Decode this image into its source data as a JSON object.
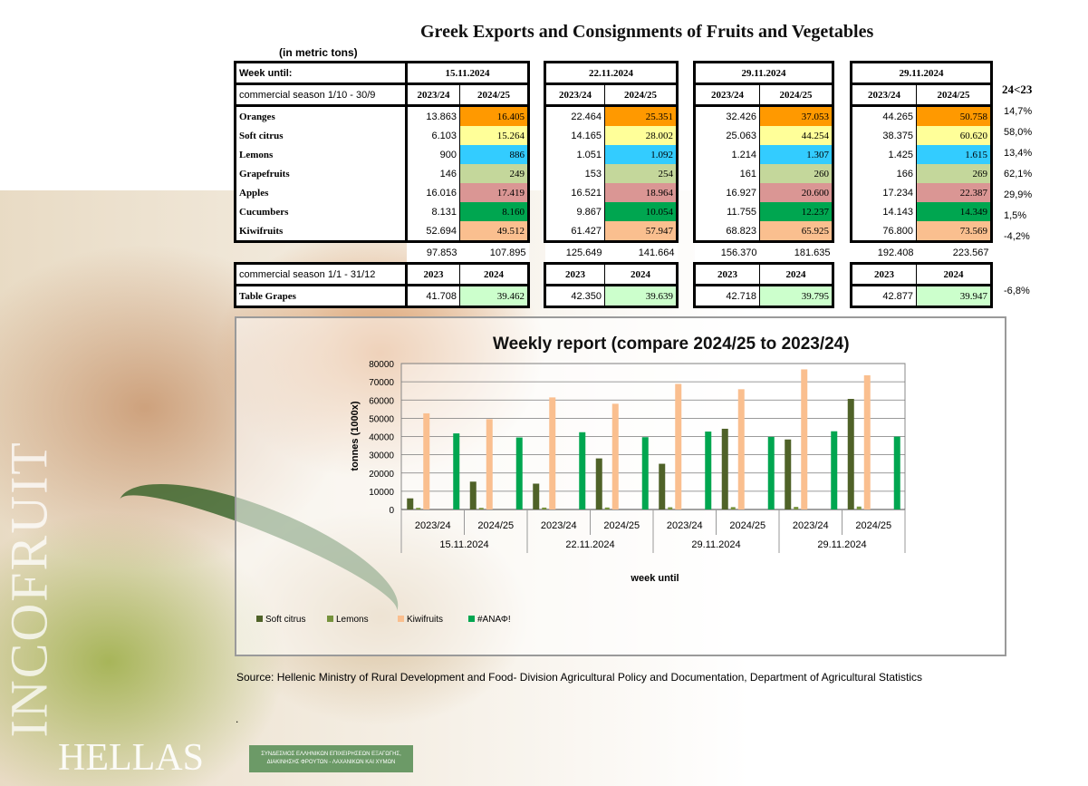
{
  "title": "Greek Exports and Consignments of Fruits and Vegetables",
  "units": "(in metric tons)",
  "header": {
    "label": "Week until:",
    "weeks": [
      "15.11.2024",
      "22.11.2024",
      "29.11.2024",
      "29.11.2024"
    ],
    "season_label": "commercial season 1/10 - 30/9",
    "seasons": [
      "2023/24",
      "2024/25"
    ],
    "compare_label": "24<23"
  },
  "rows": [
    {
      "name": "Oranges",
      "color": "#ff9900",
      "pct": "14,7%",
      "vals": [
        [
          "13.863",
          "16.405"
        ],
        [
          "22.464",
          "25.351"
        ],
        [
          "32.426",
          "37.053"
        ],
        [
          "44.265",
          "50.758"
        ]
      ]
    },
    {
      "name": "Soft citrus",
      "color": "#ffff99",
      "pct": "58,0%",
      "vals": [
        [
          "6.103",
          "15.264"
        ],
        [
          "14.165",
          "28.002"
        ],
        [
          "25.063",
          "44.254"
        ],
        [
          "38.375",
          "60.620"
        ]
      ]
    },
    {
      "name": "Lemons",
      "color": "#33ccff",
      "pct": "13,4%",
      "vals": [
        [
          "900",
          "886"
        ],
        [
          "1.051",
          "1.092"
        ],
        [
          "1.214",
          "1.307"
        ],
        [
          "1.425",
          "1.615"
        ]
      ]
    },
    {
      "name": "Grapefruits",
      "color": "#c4d79b",
      "pct": "62,1%",
      "vals": [
        [
          "146",
          "249"
        ],
        [
          "153",
          "254"
        ],
        [
          "161",
          "260"
        ],
        [
          "166",
          "269"
        ]
      ]
    },
    {
      "name": "Apples",
      "color": "#da9694",
      "pct": "29,9%",
      "vals": [
        [
          "16.016",
          "17.419"
        ],
        [
          "16.521",
          "18.964"
        ],
        [
          "16.927",
          "20.600"
        ],
        [
          "17.234",
          "22.387"
        ]
      ]
    },
    {
      "name": "Cucumbers",
      "color": "#00a650",
      "pct": "1,5%",
      "vals": [
        [
          "8.131",
          "8.160"
        ],
        [
          "9.867",
          "10.054"
        ],
        [
          "11.755",
          "12.237"
        ],
        [
          "14.143",
          "14.349"
        ]
      ]
    },
    {
      "name": "Kiwifruits",
      "color": "#fabf8f",
      "pct": "-4,2%",
      "vals": [
        [
          "52.694",
          "49.512"
        ],
        [
          "61.427",
          "57.947"
        ],
        [
          "68.823",
          "65.925"
        ],
        [
          "76.800",
          "73.569"
        ]
      ]
    }
  ],
  "totals": [
    [
      "97.853",
      "107.895"
    ],
    [
      "125.649",
      "141.664"
    ],
    [
      "156.370",
      "181.635"
    ],
    [
      "192.408",
      "223.567"
    ]
  ],
  "grapes": {
    "season_label": "commercial season 1/1 - 31/12",
    "seasons": [
      "2023",
      "2024"
    ],
    "name": "Table Grapes",
    "color": "#ccffcc",
    "pct": "-6,8%",
    "vals": [
      [
        "41.708",
        "39.462"
      ],
      [
        "42.350",
        "39.639"
      ],
      [
        "42.718",
        "39.795"
      ],
      [
        "42.877",
        "39.947"
      ]
    ]
  },
  "chart_data": {
    "type": "bar",
    "title": "Weekly report (compare 2024/25 to 2023/24)",
    "ylabel": "tonnes (1000x)",
    "xlabel": "week until",
    "ylim": [
      0,
      80000
    ],
    "yticks": [
      "0",
      "10000",
      "20000",
      "30000",
      "40000",
      "50000",
      "60000",
      "70000",
      "80000"
    ],
    "categories": [
      "2023/24",
      "2024/25",
      "2023/24",
      "2024/25",
      "2023/24",
      "2024/25",
      "2023/24",
      "2024/25"
    ],
    "groups": [
      "15.11.2024",
      "22.11.2024",
      "29.11.2024",
      "29.11.2024"
    ],
    "series": [
      {
        "name": "Soft citrus",
        "color": "#4f6228",
        "values": [
          6103,
          15264,
          14165,
          28002,
          25063,
          44254,
          38375,
          60620
        ]
      },
      {
        "name": "Lemons",
        "color": "#76923c",
        "values": [
          900,
          886,
          1051,
          1092,
          1214,
          1307,
          1425,
          1615
        ]
      },
      {
        "name": "Kiwifruits",
        "color": "#fabf8f",
        "values": [
          52694,
          49512,
          61427,
          57947,
          68823,
          65925,
          76800,
          73569
        ]
      },
      {
        "name": "#ΑΝΑΦ!",
        "color": "#00a650",
        "values": [
          41708,
          39462,
          42350,
          39639,
          42718,
          39795,
          42877,
          39947
        ]
      }
    ],
    "legend_position": "bottom-left"
  },
  "source": "Source: Hellenic Ministry of Rural Development and Food- Division Agricultural Policy and Documentation, Department of Agricultural Statistics",
  "dot": ".",
  "watermark": "INCOFRUIT",
  "brand": "HELLAS",
  "logo_text": "ΣΥΝΔΕΣΜΟΣ ΕΛΛΗΝΙΚΩΝ ΕΠΙΧΕΙΡΗΣΕΩΝ ΕΞΑΓΩΓΗΣ, ΔΙΑΚΙΝΗΣΗΣ ΦΡΟΥΤΩΝ - ΛΑΧΑΝΙΚΩΝ ΚΑΙ ΧΥΜΩΝ"
}
